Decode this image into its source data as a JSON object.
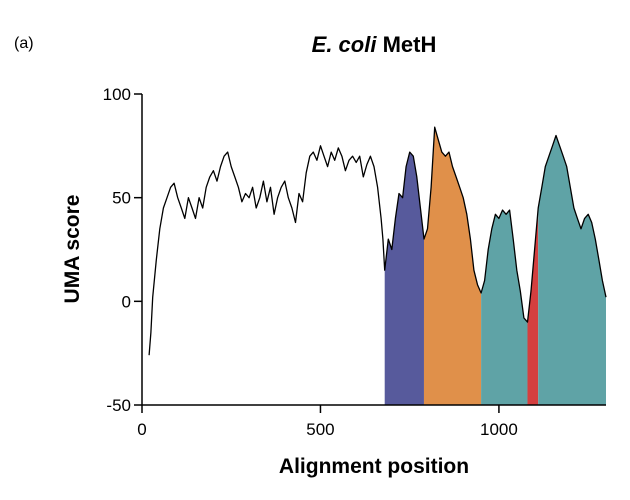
{
  "panel_label": "(a)",
  "title": {
    "italic": "E. coli",
    "rest": " MetH"
  },
  "chart_data": {
    "type": "area",
    "title": "E. coli MetH",
    "xlabel": "Alignment position",
    "ylabel": "UMA score",
    "xlim": [
      0,
      1300
    ],
    "ylim": [
      -50,
      100
    ],
    "xticks": [
      0,
      500,
      1000
    ],
    "yticks": [
      -50,
      0,
      50,
      100
    ],
    "grid": false,
    "series": [
      {
        "x": [
          20,
          25,
          30,
          40,
          50,
          60,
          70,
          80,
          90,
          100,
          110,
          120,
          130,
          140,
          150,
          160,
          170,
          180,
          190,
          200,
          210,
          220,
          230,
          240,
          250,
          260,
          270,
          280,
          290,
          300,
          310,
          320,
          330,
          340,
          350,
          360,
          370,
          380,
          390,
          400,
          410,
          420,
          430,
          440,
          450,
          460,
          470,
          480,
          490,
          500,
          510,
          520,
          530,
          540,
          550,
          560,
          570,
          580,
          590,
          600,
          610,
          620,
          630,
          640,
          650,
          660,
          670,
          675,
          680,
          690,
          700,
          710,
          720,
          730,
          740,
          750,
          760,
          770,
          780,
          790,
          800,
          810,
          820,
          830,
          840,
          850,
          860,
          870,
          880,
          890,
          900,
          910,
          920,
          930,
          940,
          950,
          960,
          970,
          980,
          990,
          1000,
          1010,
          1020,
          1030,
          1040,
          1050,
          1060,
          1070,
          1080,
          1090,
          1100,
          1110,
          1120,
          1130,
          1140,
          1150,
          1160,
          1170,
          1180,
          1190,
          1200,
          1210,
          1220,
          1230,
          1240,
          1250,
          1260,
          1270,
          1280,
          1290,
          1300
        ],
        "values": [
          -26,
          -15,
          2,
          20,
          35,
          45,
          50,
          55,
          57,
          50,
          45,
          40,
          50,
          45,
          40,
          50,
          45,
          55,
          60,
          63,
          58,
          65,
          70,
          72,
          65,
          60,
          55,
          48,
          52,
          50,
          55,
          45,
          50,
          58,
          48,
          55,
          42,
          50,
          55,
          58,
          50,
          45,
          38,
          52,
          48,
          62,
          70,
          72,
          68,
          75,
          70,
          65,
          72,
          68,
          74,
          70,
          63,
          68,
          70,
          67,
          70,
          60,
          66,
          70,
          65,
          55,
          40,
          30,
          15,
          30,
          25,
          40,
          52,
          50,
          65,
          72,
          70,
          60,
          45,
          30,
          35,
          55,
          84,
          78,
          72,
          70,
          72,
          65,
          60,
          55,
          50,
          42,
          30,
          15,
          8,
          4,
          10,
          25,
          35,
          42,
          40,
          44,
          42,
          44,
          30,
          15,
          5,
          -8,
          -10,
          5,
          25,
          45,
          55,
          65,
          70,
          75,
          80,
          75,
          70,
          65,
          55,
          45,
          40,
          35,
          40,
          42,
          38,
          30,
          20,
          10,
          2
        ]
      }
    ],
    "regions": [
      {
        "x_start": 680,
        "x_end": 790,
        "color": "#575a9c"
      },
      {
        "x_start": 790,
        "x_end": 950,
        "color": "#e0904a"
      },
      {
        "x_start": 950,
        "x_end": 1080,
        "color": "#5fa3a6"
      },
      {
        "x_start": 1080,
        "x_end": 1110,
        "color": "#d43f3f"
      },
      {
        "x_start": 1110,
        "x_end": 1300,
        "color": "#5fa3a6"
      }
    ]
  }
}
